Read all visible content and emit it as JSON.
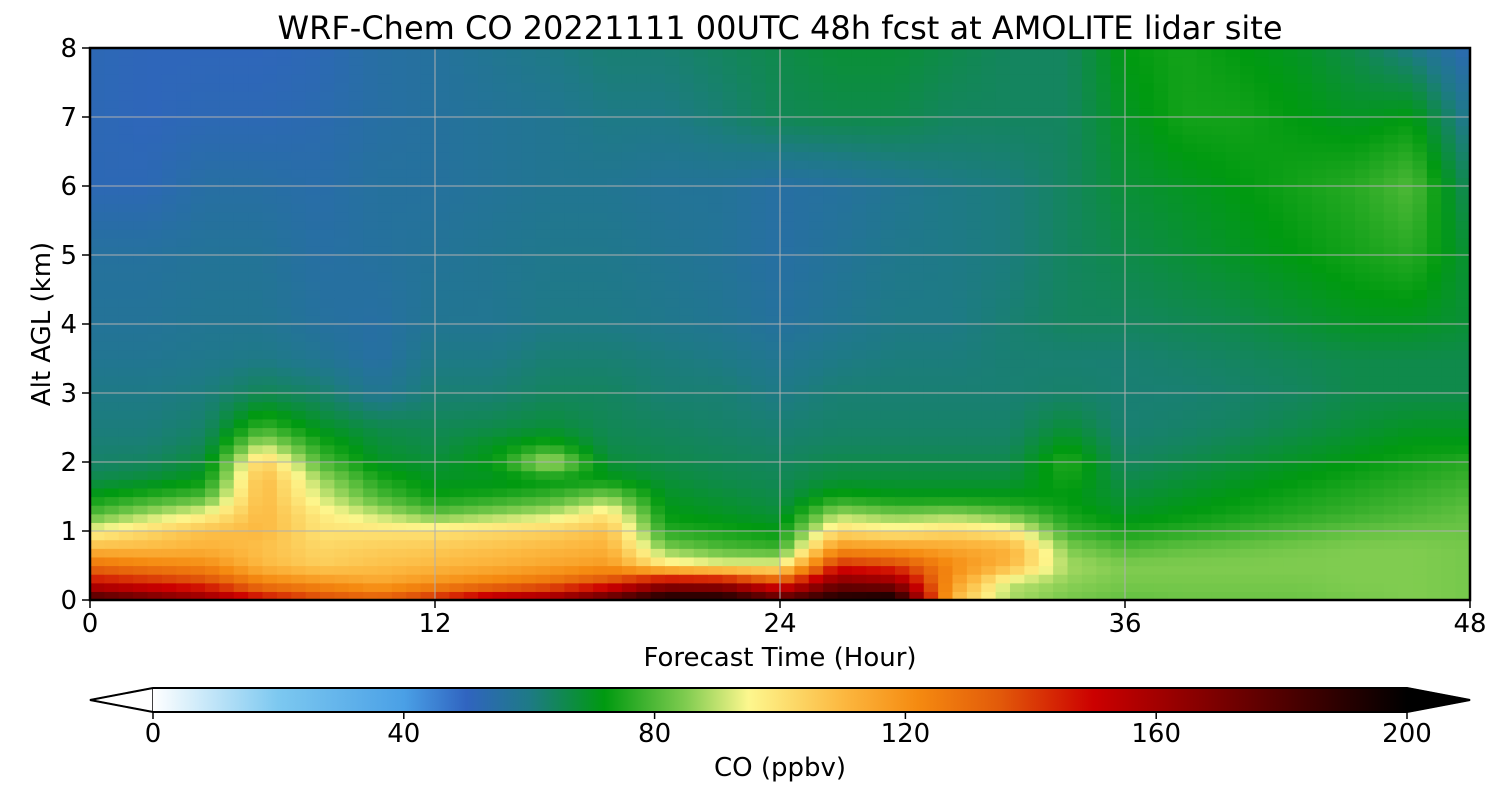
{
  "chart_data": {
    "type": "heatmap",
    "title": "WRF-Chem CO  20221111 00UTC 48h fcst at AMOLITE lidar site",
    "xlabel": "Forecast Time (Hour)",
    "ylabel": "Alt AGL (km)",
    "xlim": [
      0,
      48
    ],
    "ylim": [
      0,
      8
    ],
    "xticks": [
      0,
      12,
      24,
      36,
      48
    ],
    "yticks": [
      0,
      1,
      2,
      3,
      4,
      5,
      6,
      7,
      8
    ],
    "grid": true,
    "colorbar": {
      "label": "CO  (ppbv)",
      "range": [
        0,
        200
      ],
      "ticks": [
        0,
        40,
        80,
        120,
        160,
        200
      ],
      "extend": "both",
      "colors": [
        {
          "value": 0,
          "color": "#ffffff"
        },
        {
          "value": 20,
          "color": "#7cc8f0"
        },
        {
          "value": 40,
          "color": "#4aa0e6"
        },
        {
          "value": 50,
          "color": "#3064c0"
        },
        {
          "value": 60,
          "color": "#1e7a86"
        },
        {
          "value": 72,
          "color": "#009a10"
        },
        {
          "value": 85,
          "color": "#80cc50"
        },
        {
          "value": 95,
          "color": "#fdf78e"
        },
        {
          "value": 110,
          "color": "#fcb840"
        },
        {
          "value": 122,
          "color": "#f58a10"
        },
        {
          "value": 135,
          "color": "#e25a0a"
        },
        {
          "value": 150,
          "color": "#cc0000"
        },
        {
          "value": 170,
          "color": "#7a0000"
        },
        {
          "value": 200,
          "color": "#000000"
        }
      ]
    },
    "hours": [
      0,
      2,
      4,
      6,
      8,
      10,
      12,
      14,
      16,
      18,
      20,
      22,
      24,
      26,
      28,
      30,
      32,
      34,
      36,
      38,
      40,
      42,
      44,
      46,
      48
    ],
    "altitudes_km": [
      0,
      0.25,
      0.5,
      0.75,
      1,
      1.25,
      1.5,
      1.75,
      2,
      2.25,
      2.5,
      3,
      3.5,
      4,
      5,
      6,
      7,
      8
    ],
    "values_ppbv": [
      [
        185,
        175,
        165,
        150,
        140,
        135,
        145,
        160,
        165,
        180,
        198,
        198,
        180,
        195,
        200,
        110,
        88,
        84,
        82,
        83,
        83,
        83,
        84,
        85,
        84
      ],
      [
        150,
        145,
        140,
        125,
        120,
        115,
        120,
        125,
        130,
        140,
        160,
        158,
        140,
        170,
        165,
        118,
        90,
        86,
        84,
        84,
        84,
        84,
        85,
        85,
        84
      ],
      [
        130,
        125,
        122,
        110,
        105,
        108,
        110,
        112,
        115,
        118,
        100,
        95,
        95,
        145,
        140,
        122,
        110,
        88,
        85,
        85,
        85,
        85,
        85,
        85,
        84
      ],
      [
        110,
        110,
        112,
        108,
        103,
        105,
        106,
        108,
        110,
        112,
        85,
        80,
        78,
        120,
        118,
        115,
        112,
        85,
        80,
        82,
        83,
        84,
        85,
        85,
        84
      ],
      [
        95,
        102,
        108,
        110,
        100,
        100,
        100,
        102,
        104,
        108,
        76,
        74,
        72,
        102,
        98,
        102,
        98,
        78,
        74,
        76,
        78,
        80,
        82,
        83,
        83
      ],
      [
        80,
        88,
        95,
        110,
        98,
        90,
        82,
        86,
        90,
        100,
        72,
        70,
        68,
        88,
        84,
        86,
        82,
        74,
        70,
        72,
        74,
        76,
        78,
        80,
        82
      ],
      [
        72,
        76,
        80,
        110,
        92,
        80,
        73,
        75,
        78,
        85,
        70,
        68,
        66,
        74,
        72,
        72,
        72,
        72,
        68,
        70,
        72,
        74,
        76,
        78,
        80
      ],
      [
        66,
        68,
        72,
        110,
        88,
        75,
        70,
        70,
        72,
        72,
        68,
        66,
        65,
        68,
        68,
        68,
        68,
        74,
        66,
        68,
        70,
        72,
        74,
        76,
        78
      ],
      [
        63,
        64,
        68,
        105,
        80,
        70,
        68,
        72,
        90,
        68,
        66,
        65,
        64,
        66,
        66,
        66,
        66,
        76,
        64,
        66,
        68,
        70,
        72,
        74,
        76
      ],
      [
        62,
        62,
        65,
        90,
        75,
        68,
        66,
        70,
        75,
        66,
        65,
        64,
        63,
        64,
        64,
        64,
        64,
        72,
        63,
        64,
        66,
        68,
        70,
        72,
        72
      ],
      [
        61,
        61,
        63,
        78,
        70,
        66,
        65,
        66,
        68,
        65,
        64,
        63,
        62,
        63,
        63,
        63,
        63,
        68,
        62,
        63,
        64,
        66,
        68,
        70,
        70
      ],
      [
        60,
        60,
        61,
        65,
        63,
        58,
        62,
        62,
        64,
        64,
        62,
        62,
        60,
        62,
        62,
        62,
        62,
        63,
        62,
        62,
        63,
        64,
        66,
        66,
        66
      ],
      [
        58,
        58,
        59,
        60,
        58,
        55,
        60,
        60,
        62,
        62,
        61,
        60,
        58,
        60,
        61,
        61,
        62,
        62,
        62,
        63,
        64,
        65,
        66,
        66,
        66
      ],
      [
        57,
        57,
        58,
        58,
        56,
        55,
        58,
        58,
        60,
        60,
        59,
        58,
        56,
        58,
        60,
        60,
        62,
        64,
        64,
        65,
        66,
        68,
        70,
        70,
        68
      ],
      [
        56,
        56,
        57,
        57,
        55,
        56,
        57,
        58,
        59,
        59,
        58,
        57,
        55,
        57,
        59,
        60,
        61,
        64,
        66,
        68,
        70,
        72,
        74,
        76,
        68
      ],
      [
        52,
        52,
        55,
        55,
        54,
        56,
        56,
        57,
        58,
        58,
        57,
        57,
        55,
        56,
        58,
        60,
        61,
        64,
        68,
        70,
        72,
        74,
        76,
        80,
        64
      ],
      [
        52,
        51,
        52,
        52,
        53,
        55,
        56,
        57,
        58,
        60,
        60,
        62,
        65,
        66,
        66,
        64,
        64,
        64,
        70,
        74,
        74,
        72,
        70,
        72,
        58
      ],
      [
        52,
        51,
        51,
        51,
        52,
        55,
        56,
        58,
        60,
        62,
        62,
        64,
        66,
        68,
        68,
        66,
        64,
        64,
        72,
        74,
        72,
        70,
        66,
        60,
        52
      ]
    ]
  }
}
